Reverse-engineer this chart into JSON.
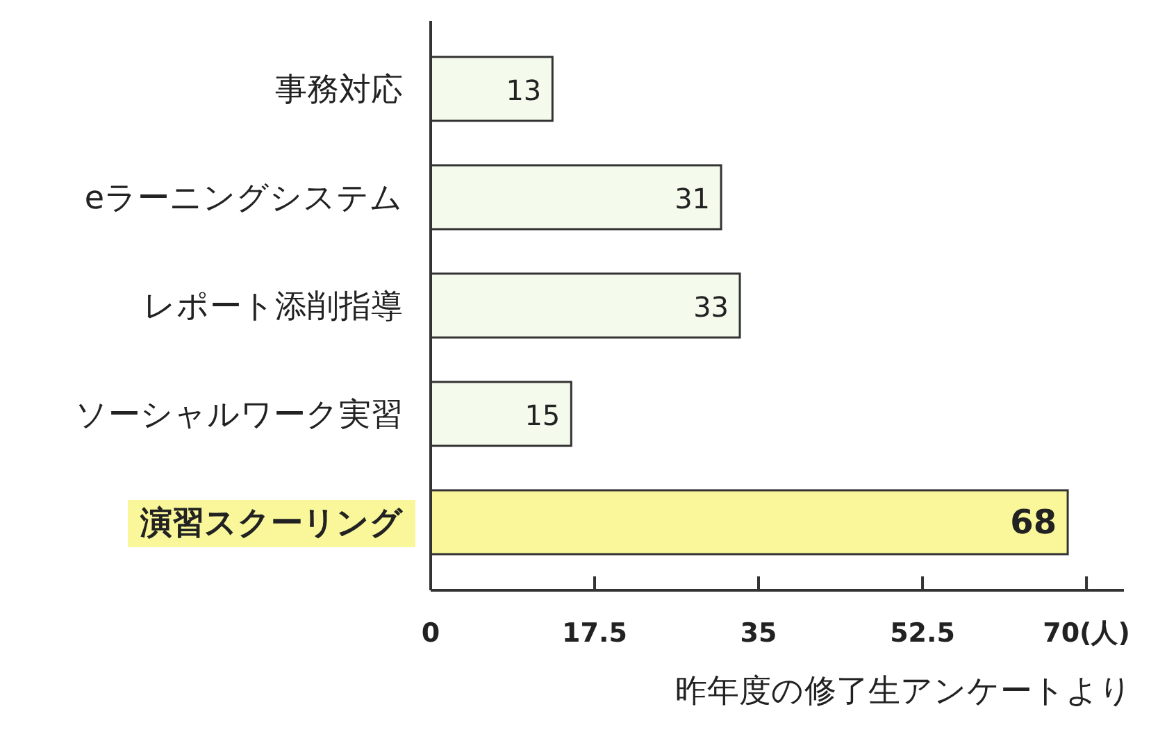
{
  "chart_data": {
    "type": "bar",
    "orientation": "horizontal",
    "categories": [
      "事務対応",
      "eラーニングシステム",
      "レポート添削指導",
      "ソーシャルワーク実習",
      "演習スクーリング"
    ],
    "values": [
      13,
      31,
      33,
      15,
      68
    ],
    "colors": [
      "#f5fbec",
      "#f5fbec",
      "#f5fbec",
      "#f5fbec",
      "#f9f79a"
    ],
    "xlim": [
      0,
      74
    ],
    "xticks": [
      0,
      17.5,
      35,
      52.5,
      {
        "value": 70,
        "label": "70(人)"
      }
    ],
    "xlabel": "昨年度の修了生アンケートより",
    "data_labels": true,
    "grid": false
  }
}
